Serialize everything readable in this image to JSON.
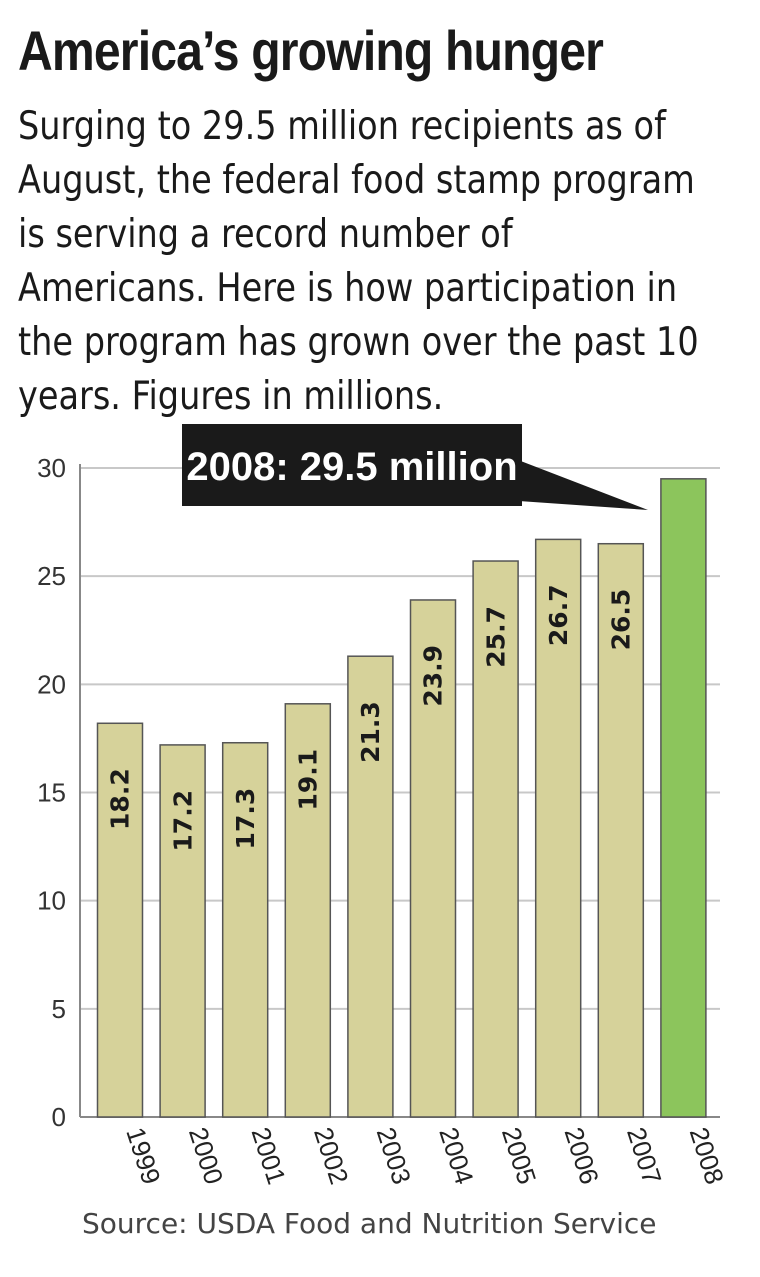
{
  "title": "America’s growing hunger",
  "subtitle": "Surging to 29.5 million recipients as of August, the federal food stamp program is serving a record number of Americans. Here is how participation in the program has grown over the past 10 years. Figures in millions.",
  "source": "Source: USDA Food and Nutrition Service",
  "colors": {
    "bar": "#d6d29a",
    "highlight": "#8cc55c",
    "grid": "#c8c8c8",
    "callout_bg": "#1a1a1a"
  },
  "chart_data": {
    "type": "bar",
    "categories": [
      "1999",
      "2000",
      "2001",
      "2002",
      "2003",
      "2004",
      "2005",
      "2006",
      "2007",
      "2008"
    ],
    "values": [
      18.2,
      17.2,
      17.3,
      19.1,
      21.3,
      23.9,
      25.7,
      26.7,
      26.5,
      29.5
    ],
    "data_labels": [
      "18.2",
      "17.2",
      "17.3",
      "19.1",
      "21.3",
      "23.9",
      "25.7",
      "26.7",
      "26.5",
      ""
    ],
    "highlight_index": 9,
    "yticks": [
      0,
      5,
      10,
      15,
      20,
      25,
      30
    ],
    "ylim": [
      0,
      30
    ],
    "grid": true,
    "annotation": "2008:  29.5 million"
  }
}
